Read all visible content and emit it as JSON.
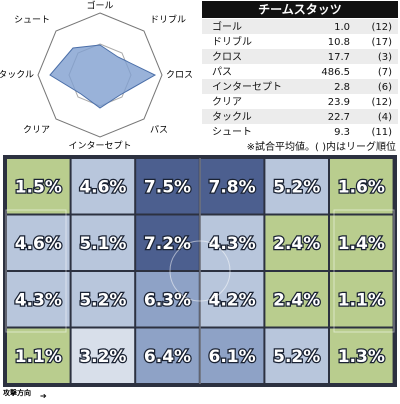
{
  "radar": {
    "axes": [
      "ゴール",
      "ドリブル",
      "クロス",
      "パス",
      "インターセプト",
      "クリア",
      "タックル",
      "シュート"
    ]
  },
  "stats": {
    "title": "チームスタッツ",
    "rows": [
      [
        "ゴール",
        "1.0",
        "(12)"
      ],
      [
        "ドリブル",
        "10.8",
        "(17)"
      ],
      [
        "クロス",
        "17.7",
        "(3)"
      ],
      [
        "パス",
        "486.5",
        "(7)"
      ],
      [
        "インターセプト",
        "2.8",
        "(6)"
      ],
      [
        "クリア",
        "23.9",
        "(12)"
      ],
      [
        "タックル",
        "22.7",
        "(4)"
      ],
      [
        "シュート",
        "9.3",
        "(11)"
      ]
    ],
    "note": "※試合平均値。( )内はリーグ順位"
  },
  "pitch": {
    "direction": "攻撃方向",
    "cells": [
      [
        {
          "text": "1.5%",
          "color": "#b9cd8e"
        },
        {
          "text": "4.6%",
          "color": "#b8c6dc"
        },
        {
          "text": "7.5%",
          "color": "#4c5f8f"
        },
        {
          "text": "7.8%",
          "color": "#4c5f8f"
        },
        {
          "text": "5.2%",
          "color": "#b8c6dc"
        },
        {
          "text": "1.6%",
          "color": "#b9cd8e"
        }
      ],
      [
        {
          "text": "4.6%",
          "color": "#b8c6dc"
        },
        {
          "text": "5.1%",
          "color": "#b8c6dc"
        },
        {
          "text": "7.2%",
          "color": "#4c5f8f"
        },
        {
          "text": "4.3%",
          "color": "#b8c6dc"
        },
        {
          "text": "2.4%",
          "color": "#b9cd8e"
        },
        {
          "text": "1.4%",
          "color": "#b9cd8e"
        }
      ],
      [
        {
          "text": "4.3%",
          "color": "#b8c6dc"
        },
        {
          "text": "5.2%",
          "color": "#b8c6dc"
        },
        {
          "text": "6.3%",
          "color": "#8ea2c6"
        },
        {
          "text": "4.2%",
          "color": "#b8c6dc"
        },
        {
          "text": "2.4%",
          "color": "#b9cd8e"
        },
        {
          "text": "1.1%",
          "color": "#b9cd8e"
        }
      ],
      [
        {
          "text": "1.1%",
          "color": "#b9cd8e"
        },
        {
          "text": "3.2%",
          "color": "#d8dfea"
        },
        {
          "text": "6.4%",
          "color": "#8ea2c6"
        },
        {
          "text": "6.1%",
          "color": "#8ea2c6"
        },
        {
          "text": "5.2%",
          "color": "#b8c6dc"
        },
        {
          "text": "1.3%",
          "color": "#b9cd8e"
        }
      ]
    ]
  }
}
